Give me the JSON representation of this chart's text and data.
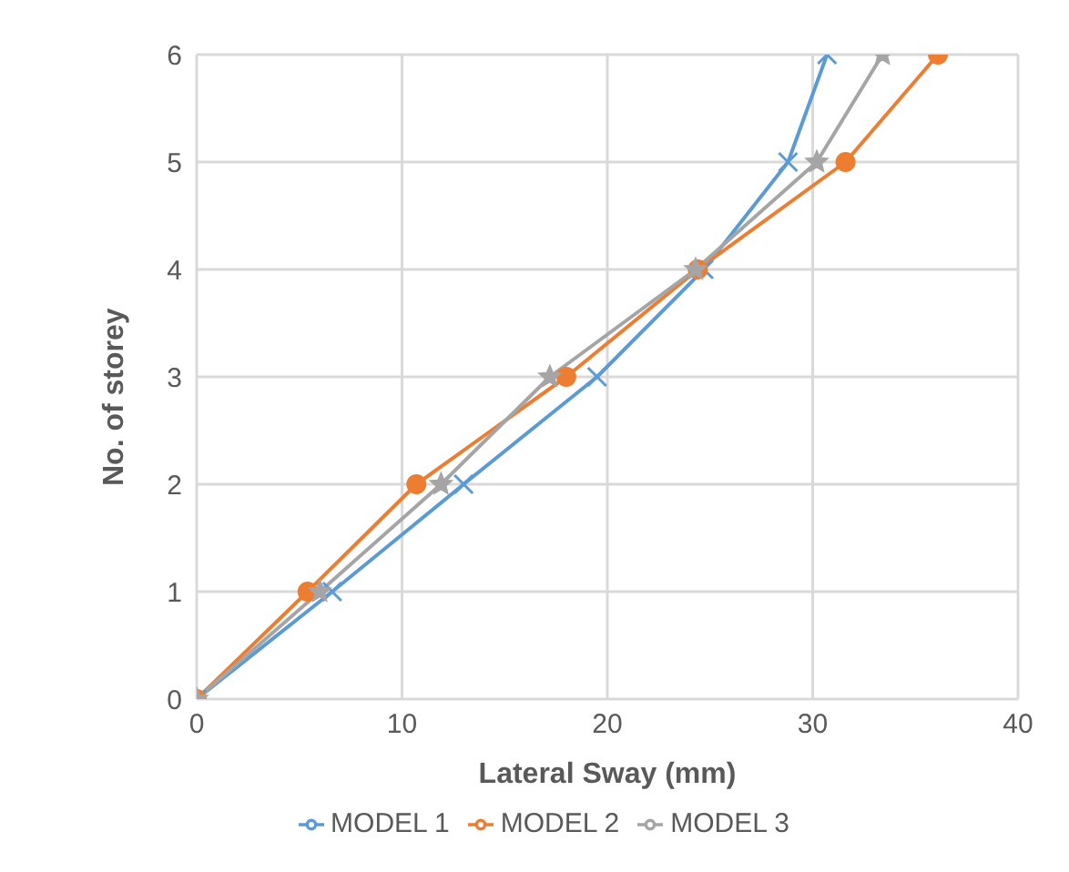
{
  "chart_data": {
    "type": "line",
    "xlabel": "Lateral Sway (mm)",
    "ylabel": "No. of storey",
    "xlim": [
      0,
      40
    ],
    "xticks": [
      0,
      10,
      20,
      30,
      40
    ],
    "ylim": [
      0,
      6
    ],
    "yticks": [
      0,
      1,
      2,
      3,
      4,
      5,
      6
    ],
    "grid": true,
    "legend": "bottom",
    "line_style": "solid",
    "series": [
      {
        "name": "MODEL 1",
        "color": "#5b9bd5",
        "marker": "cross",
        "x": [
          0,
          6.6,
          13.0,
          19.5,
          24.7,
          28.8,
          30.7
        ],
        "values": [
          0,
          1,
          2,
          3,
          4,
          5,
          6
        ]
      },
      {
        "name": "MODEL 2",
        "color": "#ed7d31",
        "marker": "circle",
        "x": [
          0,
          5.4,
          10.7,
          18.0,
          24.4,
          31.6,
          36.1
        ],
        "values": [
          0,
          1,
          2,
          3,
          4,
          5,
          6
        ]
      },
      {
        "name": "MODEL 3",
        "color": "#a5a5a5",
        "marker": "star",
        "x": [
          0,
          6.0,
          11.9,
          17.2,
          24.3,
          30.2,
          33.4
        ],
        "values": [
          0,
          1,
          2,
          3,
          4,
          5,
          6
        ]
      }
    ]
  }
}
